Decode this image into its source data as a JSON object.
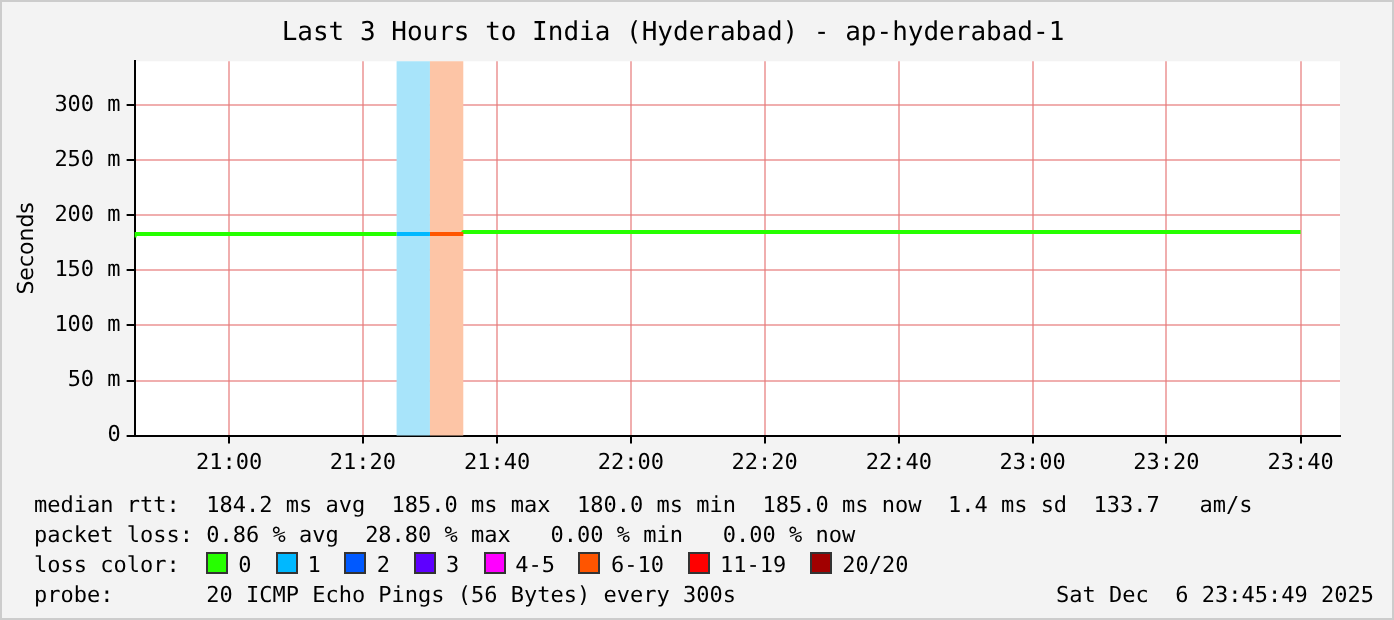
{
  "chart_data": {
    "type": "step",
    "title": "Last 3 Hours to India (Hyderabad) - ap-hyderabad-1",
    "ylabel": "Seconds",
    "legend_title": "loss color:",
    "legend": "bottom",
    "grid": true,
    "marker": "none",
    "line_style": "solid",
    "xlim": [
      20.765,
      23.765
    ],
    "xticks": [
      {
        "value": 21,
        "label": "21:00"
      },
      {
        "value": 21.333,
        "label": "21:20"
      },
      {
        "value": 21.667,
        "label": "21:40"
      },
      {
        "value": 22,
        "label": "22:00"
      },
      {
        "value": 22.333,
        "label": "22:20"
      },
      {
        "value": 22.667,
        "label": "22:40"
      },
      {
        "value": 23,
        "label": "23:00"
      },
      {
        "value": 23.333,
        "label": "23:20"
      },
      {
        "value": 23.667,
        "label": "23:40"
      }
    ],
    "ylim": [
      0,
      340
    ],
    "yticks": [
      0,
      {
        "value": 50,
        "label": "50 m"
      },
      {
        "value": 100,
        "label": "100 m"
      },
      {
        "value": 150,
        "label": "150 m"
      },
      {
        "value": 200,
        "label": "200 m"
      },
      {
        "value": 250,
        "label": "250 m"
      },
      {
        "value": 300,
        "label": "300 m"
      }
    ],
    "bands": [
      {
        "axis": "x",
        "from": 21.417,
        "to": 21.5,
        "color": "#a8e4fa"
      },
      {
        "axis": "x",
        "from": 21.5,
        "to": 21.583,
        "color": "#fdc5a6"
      }
    ],
    "series": [
      {
        "x": [
          20.765,
          21.0,
          21.417
        ],
        "values": [
          180,
          183,
          183
        ],
        "color": "#26ff00"
      },
      {
        "x": [
          21.417,
          21.5
        ],
        "values": [
          183,
          183
        ],
        "color": "#00b8ff"
      },
      {
        "x": [
          21.5,
          21.583
        ],
        "values": [
          183,
          183
        ],
        "color": "#ff5500"
      },
      {
        "x": [
          21.583,
          22.0,
          23.667
        ],
        "values": [
          183,
          185,
          185
        ],
        "color": "#26ff00"
      },
      {
        "name": "0",
        "color": "#26ff00",
        "values": [
          null
        ]
      },
      {
        "name": "1",
        "color": "#00b8ff",
        "values": [
          null
        ]
      },
      {
        "name": "2",
        "color": "#0059ff",
        "values": [
          null
        ]
      },
      {
        "name": "3",
        "color": "#5e00ff",
        "values": [
          null
        ]
      },
      {
        "name": "4-5",
        "color": "#ff00ff",
        "values": [
          null
        ]
      },
      {
        "name": "6-10",
        "color": "#ff5500",
        "values": [
          null
        ]
      },
      {
        "name": "11-19",
        "color": "#ff0000",
        "values": [
          null
        ]
      },
      {
        "name": "20/20",
        "color": "#a10000",
        "values": [
          null
        ]
      }
    ],
    "annotations": [
      "median rtt:  184.2 ms avg  185.0 ms max  180.0 ms min  185.0 ms now  1.4 ms sd  133.7   am/s",
      "packet loss: 0.86 % avg  28.80 % max   0.00 % min   0.00 % now",
      "probe:       20 ICMP Echo Pings (56 Bytes) every 300s",
      "Sat Dec  6 23:45:49 2025"
    ]
  }
}
